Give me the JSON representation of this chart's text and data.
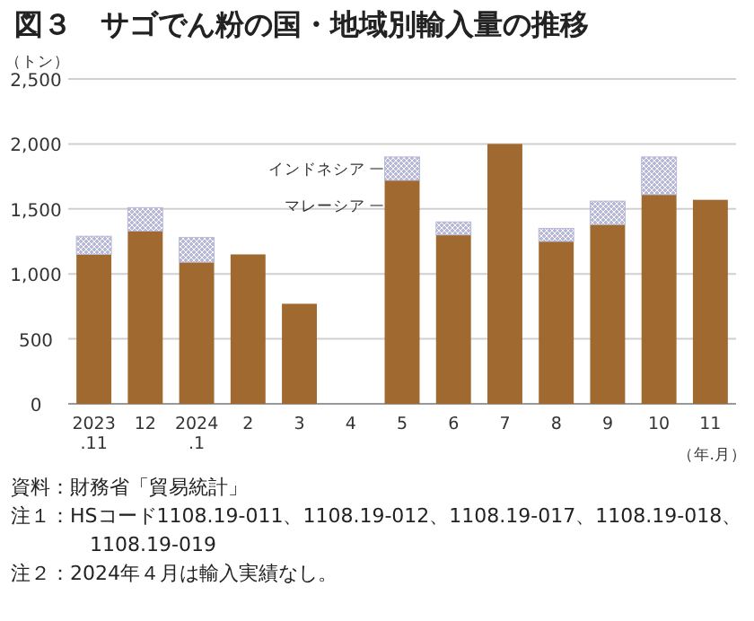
{
  "chart_data": {
    "type": "bar",
    "title": "図３　サゴでん粉の国・地域別輸入量の推移",
    "ylabel": "（トン）",
    "xlabel": "（年.月）",
    "categories": [
      "2023.11",
      "12",
      "2024.1",
      "2",
      "3",
      "4",
      "5",
      "6",
      "7",
      "8",
      "9",
      "10",
      "11"
    ],
    "stacked": true,
    "grid": "y",
    "legend": false,
    "series": [
      {
        "name": "マレーシア",
        "color": "#a0692f",
        "values": [
          1150,
          1330,
          1090,
          1150,
          770,
          0,
          1720,
          1300,
          2000,
          1250,
          1380,
          1610,
          1570
        ]
      },
      {
        "name": "インドネシア",
        "color": "#b8b8d8",
        "values": [
          140,
          180,
          190,
          0,
          0,
          0,
          180,
          100,
          0,
          100,
          180,
          290,
          0
        ]
      }
    ],
    "ylim": [
      0,
      2500
    ],
    "yticks": [
      {
        "value": 0,
        "label": "0"
      },
      {
        "value": 500,
        "label": "500"
      },
      {
        "value": 1000,
        "label": "1,000"
      },
      {
        "value": 1500,
        "label": "1,500"
      },
      {
        "value": 2000,
        "label": "2,000"
      },
      {
        "value": 2500,
        "label": "2,500"
      }
    ],
    "annotations": [
      "資料：財務省「貿易統計」",
      "注１：HSコード1108.19-011、1108.19-012、1108.19-017、1108.19-018、1108.19-019",
      "注２：2024年４月は輸入実績なし。"
    ]
  }
}
